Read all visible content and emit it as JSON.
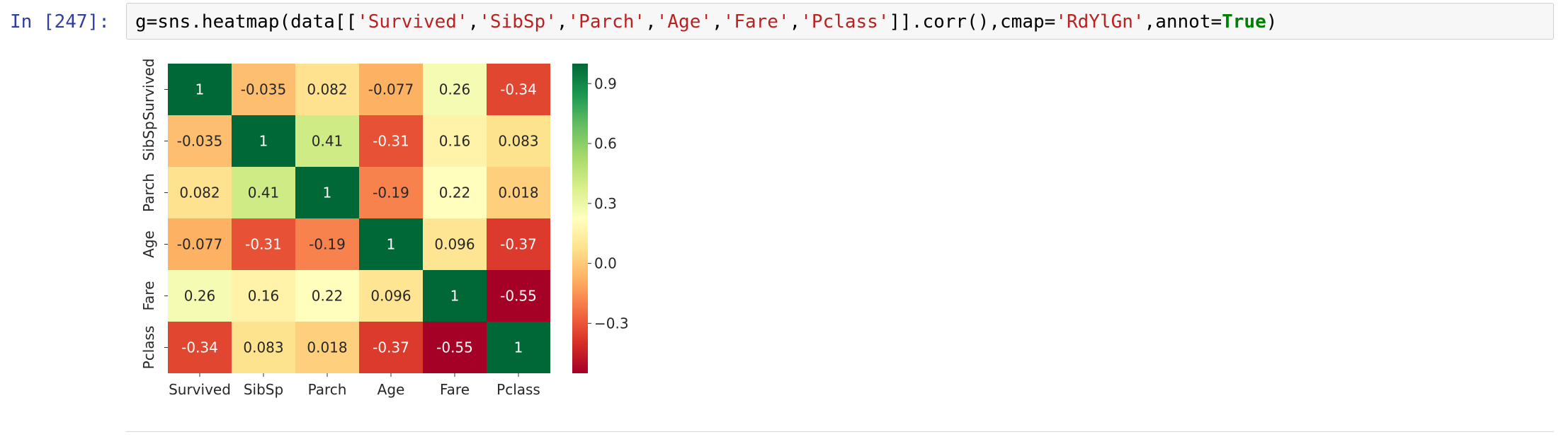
{
  "cell": {
    "prompt": "In [247]:",
    "code_tokens": [
      {
        "t": "g=sns.heatmap(data[[",
        "c": "plain"
      },
      {
        "t": "'Survived'",
        "c": "str"
      },
      {
        "t": ",",
        "c": "plain"
      },
      {
        "t": "'SibSp'",
        "c": "str"
      },
      {
        "t": ",",
        "c": "plain"
      },
      {
        "t": "'Parch'",
        "c": "str"
      },
      {
        "t": ",",
        "c": "plain"
      },
      {
        "t": "'Age'",
        "c": "str"
      },
      {
        "t": ",",
        "c": "plain"
      },
      {
        "t": "'Fare'",
        "c": "str"
      },
      {
        "t": ",",
        "c": "plain"
      },
      {
        "t": "'Pclass'",
        "c": "str"
      },
      {
        "t": "]].corr(),cmap=",
        "c": "plain"
      },
      {
        "t": "'RdYlGn'",
        "c": "str"
      },
      {
        "t": ",annot=",
        "c": "plain"
      },
      {
        "t": "True",
        "c": "kw"
      },
      {
        "t": ")",
        "c": "plain"
      }
    ]
  },
  "chart_data": {
    "type": "heatmap",
    "title": "",
    "xlabel": "",
    "ylabel": "",
    "colormap": "RdYlGn",
    "x_categories": [
      "Survived",
      "SibSp",
      "Parch",
      "Age",
      "Fare",
      "Pclass"
    ],
    "y_categories": [
      "Survived",
      "SibSp",
      "Parch",
      "Age",
      "Fare",
      "Pclass"
    ],
    "values": [
      [
        1,
        -0.035,
        0.082,
        -0.077,
        0.26,
        -0.34
      ],
      [
        -0.035,
        1,
        0.41,
        -0.31,
        0.16,
        0.083
      ],
      [
        0.082,
        0.41,
        1,
        -0.19,
        0.22,
        0.018
      ],
      [
        -0.077,
        -0.31,
        -0.19,
        1,
        0.096,
        -0.37
      ],
      [
        0.26,
        0.16,
        0.22,
        0.096,
        1,
        -0.55
      ],
      [
        -0.34,
        0.083,
        0.018,
        -0.37,
        -0.55,
        1
      ]
    ],
    "annotations": [
      [
        "1",
        "-0.035",
        "0.082",
        "-0.077",
        "0.26",
        "-0.34"
      ],
      [
        "-0.035",
        "1",
        "0.41",
        "-0.31",
        "0.16",
        "0.083"
      ],
      [
        "0.082",
        "0.41",
        "1",
        "-0.19",
        "0.22",
        "0.018"
      ],
      [
        "-0.077",
        "-0.31",
        "-0.19",
        "1",
        "0.096",
        "-0.37"
      ],
      [
        "0.26",
        "0.16",
        "0.22",
        "0.096",
        "1",
        "-0.55"
      ],
      [
        "-0.34",
        "0.083",
        "0.018",
        "-0.37",
        "-0.55",
        "1"
      ]
    ],
    "colorbar": {
      "range": [
        -0.55,
        1
      ],
      "ticks": [
        0.9,
        0.6,
        0.3,
        0.0,
        -0.3
      ],
      "tick_labels": [
        "0.9",
        "0.6",
        "0.3",
        "0.0",
        "−0.3"
      ]
    }
  }
}
